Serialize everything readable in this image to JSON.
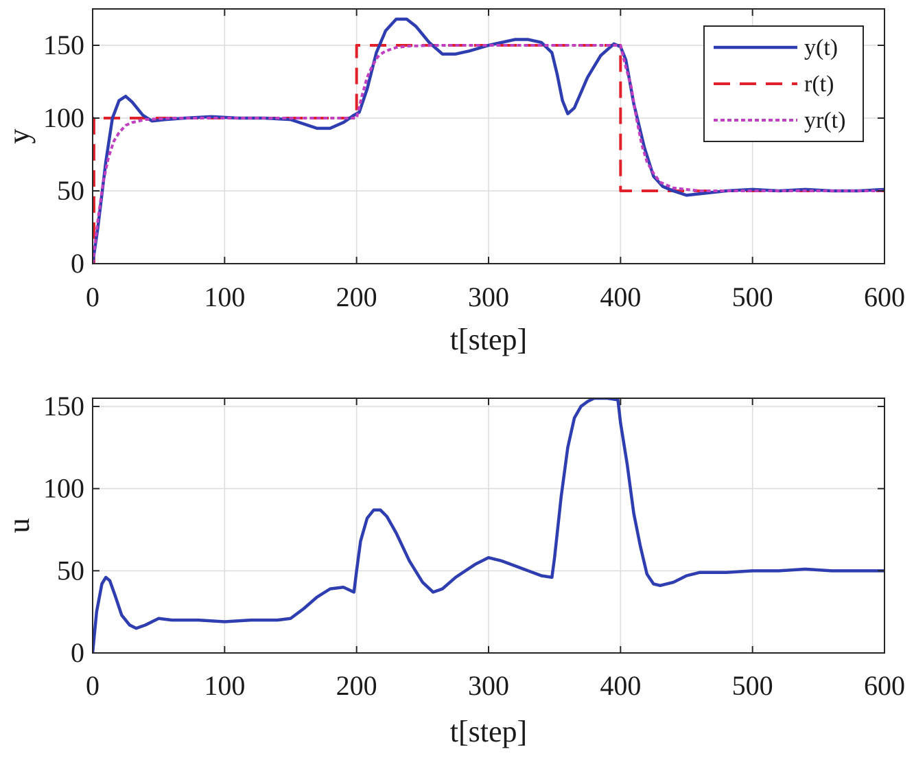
{
  "chart_data": [
    {
      "type": "line",
      "xlabel": "t[step]",
      "ylabel": "y",
      "xlim": [
        0,
        600
      ],
      "ylim": [
        0,
        175
      ],
      "xticks": [
        0,
        100,
        200,
        300,
        400,
        500,
        600
      ],
      "yticks": [
        0,
        50,
        100,
        150
      ],
      "grid": true,
      "legend": "top-right",
      "series": [
        {
          "name": "y(t)",
          "style": "solid",
          "color": "#2e3db0",
          "x": [
            0,
            4,
            10,
            15,
            20,
            25,
            30,
            38,
            45,
            55,
            70,
            90,
            110,
            130,
            150,
            160,
            170,
            180,
            190,
            198,
            202,
            208,
            215,
            222,
            230,
            238,
            245,
            255,
            265,
            275,
            285,
            300,
            320,
            330,
            340,
            348,
            352,
            356,
            360,
            365,
            375,
            385,
            395,
            400,
            404,
            410,
            418,
            425,
            432,
            440,
            450,
            460,
            480,
            500,
            520,
            540,
            560,
            580,
            600
          ],
          "y": [
            0,
            25,
            70,
            100,
            112,
            115,
            111,
            102,
            98,
            99,
            100,
            101,
            100,
            100,
            99,
            96,
            93,
            93,
            97,
            102,
            104,
            120,
            145,
            160,
            168,
            168,
            163,
            152,
            144,
            144,
            146,
            150,
            154,
            154,
            152,
            145,
            130,
            112,
            103,
            107,
            128,
            143,
            151,
            149,
            140,
            110,
            80,
            60,
            53,
            50,
            47,
            48,
            50,
            51,
            50,
            51,
            50,
            50,
            51
          ]
        },
        {
          "name": "r(t)",
          "style": "dashed",
          "color": "#e0202a",
          "x": [
            0,
            1,
            1,
            200,
            200,
            400,
            400,
            600
          ],
          "y": [
            0,
            0,
            100,
            100,
            150,
            150,
            50,
            50
          ]
        },
        {
          "name": "yr(t)",
          "style": "dotted",
          "color": "#c040c0",
          "x": [
            0,
            4,
            8,
            12,
            16,
            20,
            25,
            30,
            40,
            60,
            100,
            200,
            204,
            208,
            212,
            216,
            220,
            225,
            230,
            240,
            260,
            300,
            400,
            404,
            408,
            412,
            416,
            420,
            425,
            430,
            440,
            460,
            600
          ],
          "y": [
            0,
            30,
            56,
            73,
            84,
            90,
            95,
            97,
            99,
            100,
            100,
            100,
            115,
            128,
            136,
            142,
            145,
            147,
            148.5,
            149.5,
            150,
            150,
            150,
            135,
            122,
            100,
            82,
            70,
            62,
            56,
            52,
            50,
            50
          ]
        }
      ]
    },
    {
      "type": "line",
      "xlabel": "t[step]",
      "ylabel": "u",
      "xlim": [
        0,
        600
      ],
      "ylim": [
        0,
        155
      ],
      "xticks": [
        0,
        100,
        200,
        300,
        400,
        500,
        600
      ],
      "yticks": [
        0,
        50,
        100,
        150
      ],
      "grid": true,
      "series": [
        {
          "color": "#2e3db0",
          "style": "solid",
          "x": [
            0,
            3,
            7,
            10,
            13,
            17,
            22,
            28,
            33,
            40,
            50,
            60,
            80,
            100,
            120,
            140,
            150,
            160,
            170,
            180,
            190,
            198,
            200,
            203,
            208,
            213,
            218,
            223,
            230,
            240,
            250,
            258,
            265,
            275,
            290,
            300,
            310,
            320,
            330,
            340,
            348,
            350,
            355,
            360,
            365,
            370,
            375,
            380,
            385,
            390,
            398,
            400,
            405,
            410,
            415,
            420,
            425,
            430,
            440,
            450,
            460,
            480,
            500,
            520,
            540,
            560,
            580,
            600
          ],
          "y": [
            0,
            25,
            42,
            46,
            44,
            35,
            23,
            17,
            15,
            17,
            21,
            20,
            20,
            19,
            20,
            20,
            21,
            27,
            34,
            39,
            40,
            37,
            50,
            68,
            82,
            87,
            87,
            83,
            73,
            56,
            43,
            37,
            39,
            46,
            54,
            58,
            56,
            53,
            50,
            47,
            46,
            58,
            95,
            125,
            143,
            150,
            153,
            155,
            155,
            155,
            154,
            140,
            115,
            85,
            65,
            48,
            42,
            41,
            43,
            47,
            49,
            49,
            50,
            50,
            51,
            50,
            50,
            50
          ]
        }
      ]
    }
  ]
}
